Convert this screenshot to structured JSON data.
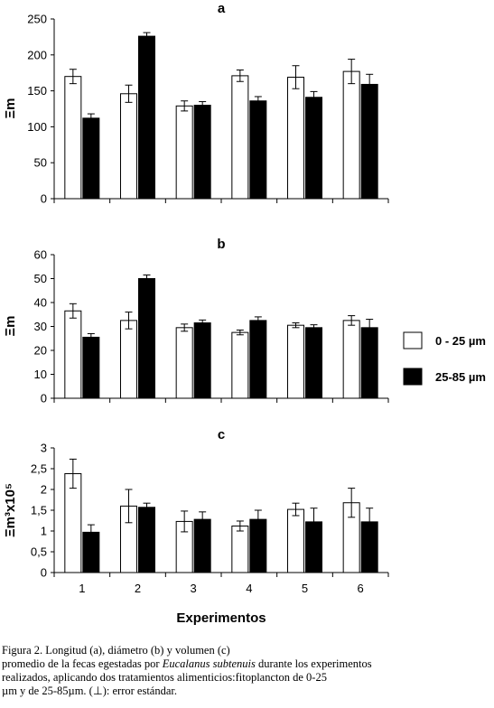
{
  "chart_data": [
    {
      "type": "bar",
      "title": "a",
      "ylabel": "Ξm",
      "ylim": [
        0,
        250
      ],
      "yticks": [
        0,
        50,
        100,
        150,
        200,
        250
      ],
      "categories": [
        "1",
        "2",
        "3",
        "4",
        "5",
        "6"
      ],
      "series": [
        {
          "name": "0 - 25 µm",
          "fill": "#ffffff",
          "values": [
            170,
            146,
            129,
            171,
            169,
            177
          ],
          "errors": [
            10,
            12,
            7,
            8,
            16,
            17
          ]
        },
        {
          "name": "25-85 µm",
          "fill": "#000000",
          "values": [
            112,
            226,
            130,
            136,
            141,
            159
          ],
          "errors": [
            6,
            5,
            5,
            6,
            8,
            14
          ]
        }
      ]
    },
    {
      "type": "bar",
      "title": "b",
      "ylabel": "Ξm",
      "ylim": [
        0,
        60
      ],
      "yticks": [
        0,
        10,
        20,
        30,
        40,
        50,
        60
      ],
      "categories": [
        "1",
        "2",
        "3",
        "4",
        "5",
        "6"
      ],
      "series": [
        {
          "name": "0 - 25 µm",
          "fill": "#ffffff",
          "values": [
            36.5,
            32.5,
            29.5,
            27.5,
            30.5,
            32.5
          ],
          "errors": [
            3,
            3.5,
            1.5,
            1,
            1,
            2
          ]
        },
        {
          "name": "25-85 µm",
          "fill": "#000000",
          "values": [
            25.5,
            50,
            31.5,
            32.5,
            29.5,
            29.5
          ],
          "errors": [
            1.5,
            1.5,
            1.2,
            1.5,
            1.2,
            3.5
          ]
        }
      ]
    },
    {
      "type": "bar",
      "title": "c",
      "ylabel": "Ξm³x10⁵",
      "ylim": [
        0,
        3
      ],
      "yticks": [
        "0",
        "0,5",
        "1",
        "1,5",
        "2",
        "2,5",
        "3"
      ],
      "ytick_values": [
        0,
        0.5,
        1,
        1.5,
        2,
        2.5,
        3
      ],
      "xlabel": "Experimentos",
      "categories": [
        "1",
        "2",
        "3",
        "4",
        "5",
        "6"
      ],
      "series": [
        {
          "name": "0 - 25 µm",
          "fill": "#ffffff",
          "values": [
            2.38,
            1.6,
            1.23,
            1.12,
            1.52,
            1.68
          ],
          "errors": [
            0.35,
            0.4,
            0.25,
            0.12,
            0.15,
            0.35
          ]
        },
        {
          "name": "25-85 µm",
          "fill": "#000000",
          "values": [
            0.97,
            1.57,
            1.28,
            1.28,
            1.22,
            1.22
          ],
          "errors": [
            0.18,
            0.1,
            0.18,
            0.22,
            0.33,
            0.33
          ]
        }
      ]
    }
  ],
  "legend": {
    "placement": "right-middle",
    "items": [
      {
        "label": "0 - 25 µm",
        "fill": "#ffffff"
      },
      {
        "label": "25-85 µm",
        "fill": "#000000"
      }
    ]
  },
  "caption": {
    "prefix": "Figura 2. Longitud (a),  diámetro (b)  y volumen (c)",
    "line2_start": "promedio de la fecas egestadas por ",
    "species": "Eucalanus   subtenuis",
    "line2_end": " durante   los  experimentos",
    "line3": "realizados,  aplicando  dos  tratamientos  alimenticios:fitoplancton de 0-25",
    "line4": "µm y de 25-85µm.  (⊥): error estándar."
  }
}
